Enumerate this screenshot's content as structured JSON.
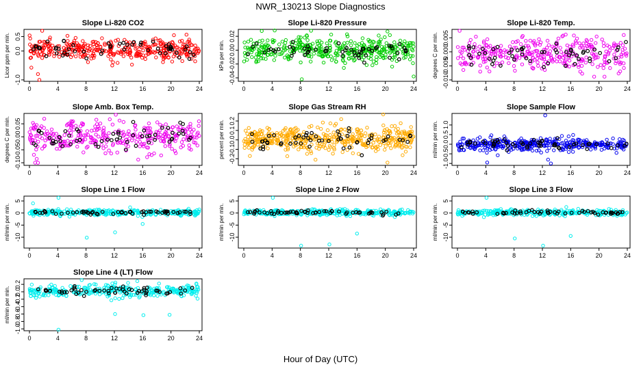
{
  "figure": {
    "title": "NWR_130213  Slope Diagnostics",
    "xlabel": "Hour of Day (UTC)"
  },
  "chart_data": [
    {
      "type": "scatter",
      "title": "Slope Li-820 CO2",
      "ylabel": "Licor ppm per min.",
      "color": "#ff0000",
      "xlim": [
        0,
        24
      ],
      "ylim": [
        -1.05,
        0.75
      ],
      "xticks": [
        "0",
        "4",
        "8",
        "12",
        "16",
        "20",
        "24"
      ],
      "yticks": [
        {
          "v": -1.0,
          "t": "-1.0"
        },
        {
          "v": 0.0,
          "t": "0.0"
        },
        {
          "v": 0.5,
          "t": "0.5"
        }
      ],
      "n": 380,
      "center": 0.05,
      "spread": 0.18,
      "outliers": [
        {
          "x": 1.8,
          "y": 0.7
        },
        {
          "x": 1.4,
          "y": -1.0
        },
        {
          "x": 1.2,
          "y": -0.8
        },
        {
          "x": 11.7,
          "y": -0.5
        }
      ]
    },
    {
      "type": "scatter",
      "title": "Slope Li-820 Pressure",
      "ylabel": "kPa per min.",
      "color": "#00cc00",
      "xlim": [
        0,
        24
      ],
      "ylim": [
        -0.045,
        0.03
      ],
      "xticks": [
        "0",
        "4",
        "8",
        "12",
        "16",
        "20",
        "24"
      ],
      "yticks": [
        {
          "v": -0.04,
          "t": "-0.04"
        },
        {
          "v": -0.02,
          "t": "-0.02"
        },
        {
          "v": 0.0,
          "t": "0.00"
        },
        {
          "v": 0.02,
          "t": "0.02"
        }
      ],
      "n": 420,
      "center": 0.0,
      "spread": 0.009,
      "outliers": [
        {
          "x": 8.2,
          "y": -0.042
        },
        {
          "x": 9.5,
          "y": 0.028
        },
        {
          "x": 24,
          "y": -0.038
        },
        {
          "x": 20.3,
          "y": 0.027
        }
      ]
    },
    {
      "type": "scatter",
      "title": "Slope Li-820 Temp.",
      "ylabel": "degrees C per min.",
      "color": "#ee00ee",
      "xlim": [
        0,
        24
      ],
      "ylim": [
        -0.0105,
        0.008
      ],
      "xticks": [
        "0",
        "4",
        "8",
        "12",
        "16",
        "20",
        "24"
      ],
      "yticks": [
        {
          "v": -0.01,
          "t": "-0.010"
        },
        {
          "v": -0.005,
          "t": "-0.005"
        },
        {
          "v": 0.0,
          "t": "0.000"
        },
        {
          "v": 0.005,
          "t": "0.005"
        }
      ],
      "n": 330,
      "center": -0.001,
      "spread": 0.003,
      "outliers": [
        {
          "x": 0.3,
          "y": 0.0075
        },
        {
          "x": 23.5,
          "y": 0.006
        }
      ]
    },
    {
      "type": "scatter",
      "title": "Slope Amb. Box Temp.",
      "ylabel": "degrees C per min.",
      "color": "#ee00ee",
      "xlim": [
        0,
        24
      ],
      "ylim": [
        -0.11,
        0.09
      ],
      "xticks": [
        "0",
        "4",
        "8",
        "12",
        "16",
        "20",
        "24"
      ],
      "yticks": [
        {
          "v": -0.1,
          "t": "-0.10"
        },
        {
          "v": -0.05,
          "t": "-0.05"
        },
        {
          "v": 0.0,
          "t": "0.00"
        },
        {
          "v": 0.05,
          "t": "0.05"
        }
      ],
      "n": 330,
      "center": 0.0,
      "spread": 0.03,
      "outliers": [
        {
          "x": 12.2,
          "y": 0.085
        },
        {
          "x": 1.2,
          "y": -0.1
        }
      ]
    },
    {
      "type": "scatter",
      "title": "Slope Gas Stream RH",
      "ylabel": "percent per min.",
      "color": "#ffaa00",
      "xlim": [
        0,
        24
      ],
      "ylim": [
        -0.27,
        0.28
      ],
      "xticks": [
        "0",
        "4",
        "8",
        "12",
        "16",
        "20",
        "24"
      ],
      "yticks": [
        {
          "v": -0.2,
          "t": "-0.2"
        },
        {
          "v": -0.1,
          "t": "-0.1"
        },
        {
          "v": 0.0,
          "t": "0.0"
        },
        {
          "v": 0.1,
          "t": "0.1"
        },
        {
          "v": 0.2,
          "t": "0.2"
        }
      ],
      "n": 460,
      "center": 0.0,
      "spread": 0.07,
      "outliers": [
        {
          "x": 19.7,
          "y": 0.27
        },
        {
          "x": 20.3,
          "y": -0.24
        }
      ]
    },
    {
      "type": "scatter",
      "title": "Slope Sample Flow",
      "ylabel": "ml/min per min.",
      "color": "#0000ee",
      "xlim": [
        0,
        24
      ],
      "ylim": [
        -1.1,
        1.6
      ],
      "xticks": [
        "0",
        "4",
        "8",
        "12",
        "16",
        "20",
        "24"
      ],
      "yticks": [
        {
          "v": -1.0,
          "t": "-1.0"
        },
        {
          "v": -0.5,
          "t": "-0.5"
        },
        {
          "v": 0.0,
          "t": "0.0"
        },
        {
          "v": 0.5,
          "t": "0.5"
        },
        {
          "v": 1.0,
          "t": "1.0"
        }
      ],
      "n": 380,
      "center": 0.0,
      "spread": 0.17,
      "outliers": [
        {
          "x": 12.4,
          "y": 1.5
        },
        {
          "x": 13.2,
          "y": -1.0
        },
        {
          "x": 4.2,
          "y": -0.95
        },
        {
          "x": 12.8,
          "y": -0.8
        }
      ]
    },
    {
      "type": "scatter",
      "title": "Slope Line 1 Flow",
      "ylabel": "ml/min per min.",
      "color": "#00eeee",
      "xlim": [
        0,
        24
      ],
      "ylim": [
        -14.5,
        7
      ],
      "xticks": [
        "0",
        "4",
        "8",
        "12",
        "16",
        "20",
        "24"
      ],
      "yticks": [
        {
          "v": -10,
          "t": "-10"
        },
        {
          "v": -5,
          "t": "-5"
        },
        {
          "v": 0,
          "t": "0"
        },
        {
          "v": 5,
          "t": "5"
        }
      ],
      "n": 330,
      "center": 0.2,
      "spread": 0.6,
      "outliers": [
        {
          "x": 4.1,
          "y": 6.3
        },
        {
          "x": 8.1,
          "y": -10.2
        },
        {
          "x": 12.1,
          "y": -8
        },
        {
          "x": 16,
          "y": -4.5
        },
        {
          "x": 0.5,
          "y": 4
        }
      ]
    },
    {
      "type": "scatter",
      "title": "Slope Line 2 Flow",
      "ylabel": "ml/min per min.",
      "color": "#00eeee",
      "xlim": [
        0,
        24
      ],
      "ylim": [
        -14.5,
        7
      ],
      "xticks": [
        "0",
        "4",
        "8",
        "12",
        "16",
        "20",
        "24"
      ],
      "yticks": [
        {
          "v": -10,
          "t": "-10"
        },
        {
          "v": -5,
          "t": "-5"
        },
        {
          "v": 0,
          "t": "0"
        },
        {
          "v": 5,
          "t": "5"
        }
      ],
      "n": 330,
      "center": 0.2,
      "spread": 0.6,
      "outliers": [
        {
          "x": 4.1,
          "y": 6.3
        },
        {
          "x": 8.1,
          "y": -13.5
        },
        {
          "x": 12.1,
          "y": -13
        },
        {
          "x": 16,
          "y": -8.5
        }
      ]
    },
    {
      "type": "scatter",
      "title": "Slope Line 3 Flow",
      "ylabel": "ml/min per min.",
      "color": "#00eeee",
      "xlim": [
        0,
        24
      ],
      "ylim": [
        -14.5,
        7
      ],
      "xticks": [
        "0",
        "4",
        "8",
        "12",
        "16",
        "20",
        "24"
      ],
      "yticks": [
        {
          "v": -10,
          "t": "-10"
        },
        {
          "v": -5,
          "t": "-5"
        },
        {
          "v": 0,
          "t": "0"
        },
        {
          "v": 5,
          "t": "5"
        }
      ],
      "n": 330,
      "center": 0.2,
      "spread": 0.6,
      "outliers": [
        {
          "x": 4.1,
          "y": 6.3
        },
        {
          "x": 8.1,
          "y": -10.5
        },
        {
          "x": 12.1,
          "y": -13.5
        },
        {
          "x": 16,
          "y": -9.5
        }
      ]
    },
    {
      "type": "scatter",
      "title": "Slope Line 4 (LT) Flow",
      "ylabel": "ml/min per min.",
      "color": "#00eeee",
      "xlim": [
        0,
        24
      ],
      "ylim": [
        -1.05,
        0.35
      ],
      "xticks": [
        "0",
        "4",
        "8",
        "12",
        "16",
        "20",
        "24"
      ],
      "yticks": [
        {
          "v": -1.0,
          "t": "-1.0"
        },
        {
          "v": -0.8,
          "t": "-0.8"
        },
        {
          "v": -0.6,
          "t": "-0.6"
        },
        {
          "v": -0.4,
          "t": "-0.4"
        },
        {
          "v": -0.2,
          "t": "-0.2"
        },
        {
          "v": 0.0,
          "t": "0.0"
        },
        {
          "v": 0.2,
          "t": "0.2"
        }
      ],
      "n": 330,
      "center": 0.02,
      "spread": 0.09,
      "outliers": [
        {
          "x": 4.1,
          "y": -1.02
        },
        {
          "x": 12.1,
          "y": -0.6
        },
        {
          "x": 16.1,
          "y": -0.63
        },
        {
          "x": 19.8,
          "y": -0.62
        }
      ]
    }
  ]
}
